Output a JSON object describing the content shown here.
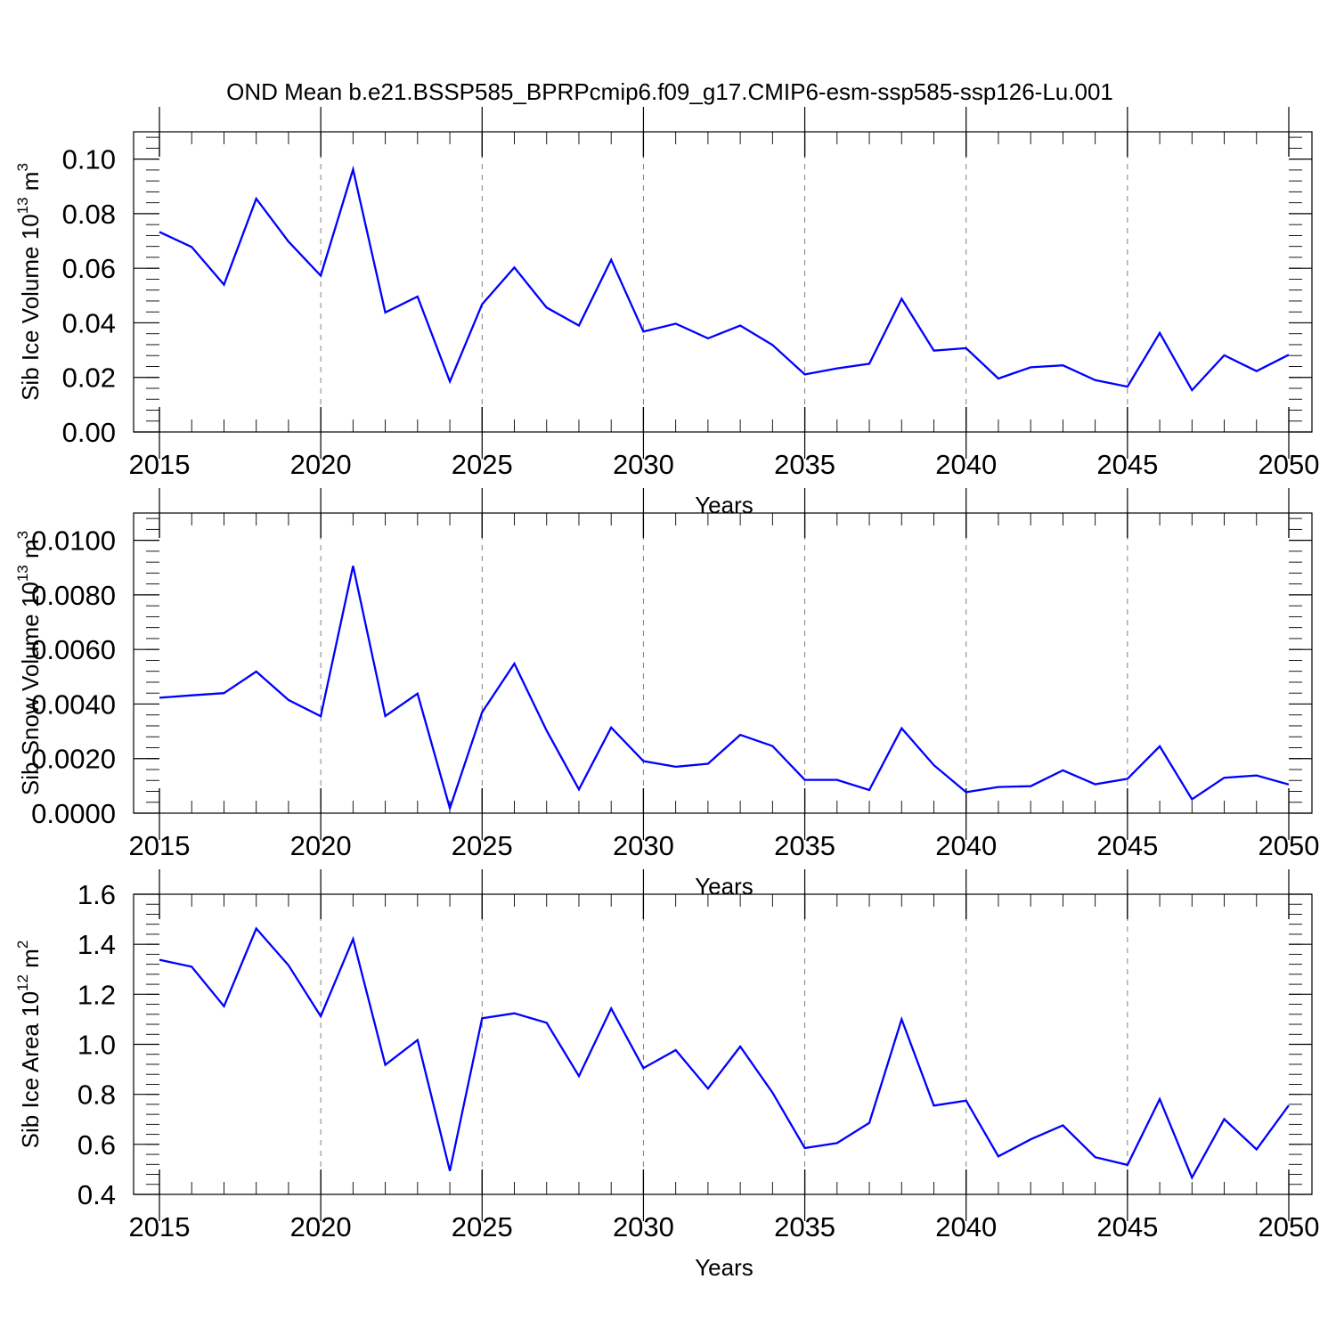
{
  "title": "OND Mean b.e21.BSSP585_BPRPcmip6.f09_g17.CMIP6-esm-ssp585-ssp126-Lu.001",
  "colors": {
    "line": "#0000ff",
    "axis": "#000000",
    "grid": "#808080"
  },
  "chart_data": [
    {
      "type": "line",
      "xlabel": "Years",
      "ylabel_main": "Sib Ice Volume 10",
      "ylabel_sup": "13",
      "ylabel_unit": "m",
      "ylabel_unit_sup": "3",
      "xlim": [
        2015,
        2050
      ],
      "ylim": [
        0.0,
        0.11
      ],
      "yticks": [
        0.0,
        0.02,
        0.04,
        0.06,
        0.08,
        0.1
      ],
      "ytick_labels": [
        "0.00",
        "0.02",
        "0.04",
        "0.06",
        "0.08",
        "0.10"
      ],
      "xticks": [
        2015,
        2020,
        2025,
        2030,
        2035,
        2040,
        2045,
        2050
      ],
      "xtick_labels": [
        "2015",
        "2020",
        "2025",
        "2030",
        "2035",
        "2040",
        "2045",
        "2050"
      ],
      "grid": "vertical dashed at major x ticks",
      "x": [
        2015,
        2016,
        2017,
        2018,
        2019,
        2020,
        2021,
        2022,
        2023,
        2024,
        2025,
        2026,
        2027,
        2028,
        2029,
        2030,
        2031,
        2032,
        2033,
        2034,
        2035,
        2036,
        2037,
        2038,
        2039,
        2040,
        2041,
        2042,
        2043,
        2044,
        2045,
        2046,
        2047,
        2048,
        2049,
        2050
      ],
      "values": [
        0.0733,
        0.0678,
        0.054,
        0.0855,
        0.0698,
        0.0573,
        0.0962,
        0.0438,
        0.0496,
        0.0185,
        0.0468,
        0.0603,
        0.0456,
        0.039,
        0.0631,
        0.0368,
        0.0397,
        0.0343,
        0.039,
        0.0319,
        0.0211,
        0.0233,
        0.025,
        0.0488,
        0.0298,
        0.0307,
        0.0196,
        0.0237,
        0.0244,
        0.019,
        0.0166,
        0.0363,
        0.0153,
        0.0281,
        0.0223,
        0.0283
      ]
    },
    {
      "type": "line",
      "xlabel": "Years",
      "ylabel_main": "Sib Snow Volume 10",
      "ylabel_sup": "13",
      "ylabel_unit": "m",
      "ylabel_unit_sup": "3",
      "xlim": [
        2015,
        2050
      ],
      "ylim": [
        0.0,
        0.011
      ],
      "yticks": [
        0.0,
        0.002,
        0.004,
        0.006,
        0.008,
        0.01
      ],
      "ytick_labels": [
        "0.0000",
        "0.0020",
        "0.0040",
        "0.0060",
        "0.0080",
        "0.0100"
      ],
      "xticks": [
        2015,
        2020,
        2025,
        2030,
        2035,
        2040,
        2045,
        2050
      ],
      "xtick_labels": [
        "2015",
        "2020",
        "2025",
        "2030",
        "2035",
        "2040",
        "2045",
        "2050"
      ],
      "grid": "vertical dashed at major x ticks",
      "x": [
        2015,
        2016,
        2017,
        2018,
        2019,
        2020,
        2021,
        2022,
        2023,
        2024,
        2025,
        2026,
        2027,
        2028,
        2029,
        2030,
        2031,
        2032,
        2033,
        2034,
        2035,
        2036,
        2037,
        2038,
        2039,
        2040,
        2041,
        2042,
        2043,
        2044,
        2045,
        2046,
        2047,
        2048,
        2049,
        2050
      ],
      "values": [
        0.00423,
        0.00432,
        0.0044,
        0.00519,
        0.00415,
        0.00355,
        0.00906,
        0.00356,
        0.00438,
        0.00018,
        0.0037,
        0.00548,
        0.00303,
        0.00087,
        0.00314,
        0.00191,
        0.0017,
        0.00181,
        0.00287,
        0.00246,
        0.00122,
        0.00122,
        0.00085,
        0.00311,
        0.00176,
        0.00077,
        0.00096,
        0.00099,
        0.00157,
        0.00106,
        0.00126,
        0.00245,
        0.00051,
        0.0013,
        0.00138,
        0.00105
      ]
    },
    {
      "type": "line",
      "xlabel": "Years",
      "ylabel_main": "Sib Ice Area 10",
      "ylabel_sup": "12",
      "ylabel_unit": "m",
      "ylabel_unit_sup": "2",
      "xlim": [
        2015,
        2050
      ],
      "ylim": [
        0.4,
        1.6
      ],
      "yticks": [
        0.4,
        0.6,
        0.8,
        1.0,
        1.2,
        1.4,
        1.6
      ],
      "ytick_labels": [
        "0.4",
        "0.6",
        "0.8",
        "1.0",
        "1.2",
        "1.4",
        "1.6"
      ],
      "xticks": [
        2015,
        2020,
        2025,
        2030,
        2035,
        2040,
        2045,
        2050
      ],
      "xtick_labels": [
        "2015",
        "2020",
        "2025",
        "2030",
        "2035",
        "2040",
        "2045",
        "2050"
      ],
      "grid": "vertical dashed at major x ticks",
      "x": [
        2015,
        2016,
        2017,
        2018,
        2019,
        2020,
        2021,
        2022,
        2023,
        2024,
        2025,
        2026,
        2027,
        2028,
        2029,
        2030,
        2031,
        2032,
        2033,
        2034,
        2035,
        2036,
        2037,
        2038,
        2039,
        2040,
        2041,
        2042,
        2043,
        2044,
        2045,
        2046,
        2047,
        2048,
        2049,
        2050
      ],
      "values": [
        1.338,
        1.31,
        1.152,
        1.463,
        1.316,
        1.112,
        1.421,
        0.918,
        1.017,
        0.494,
        1.104,
        1.124,
        1.086,
        0.873,
        1.143,
        0.905,
        0.977,
        0.823,
        0.991,
        0.807,
        0.585,
        0.605,
        0.686,
        1.1,
        0.755,
        0.775,
        0.552,
        0.62,
        0.676,
        0.549,
        0.518,
        0.781,
        0.467,
        0.701,
        0.58,
        0.756
      ]
    }
  ]
}
